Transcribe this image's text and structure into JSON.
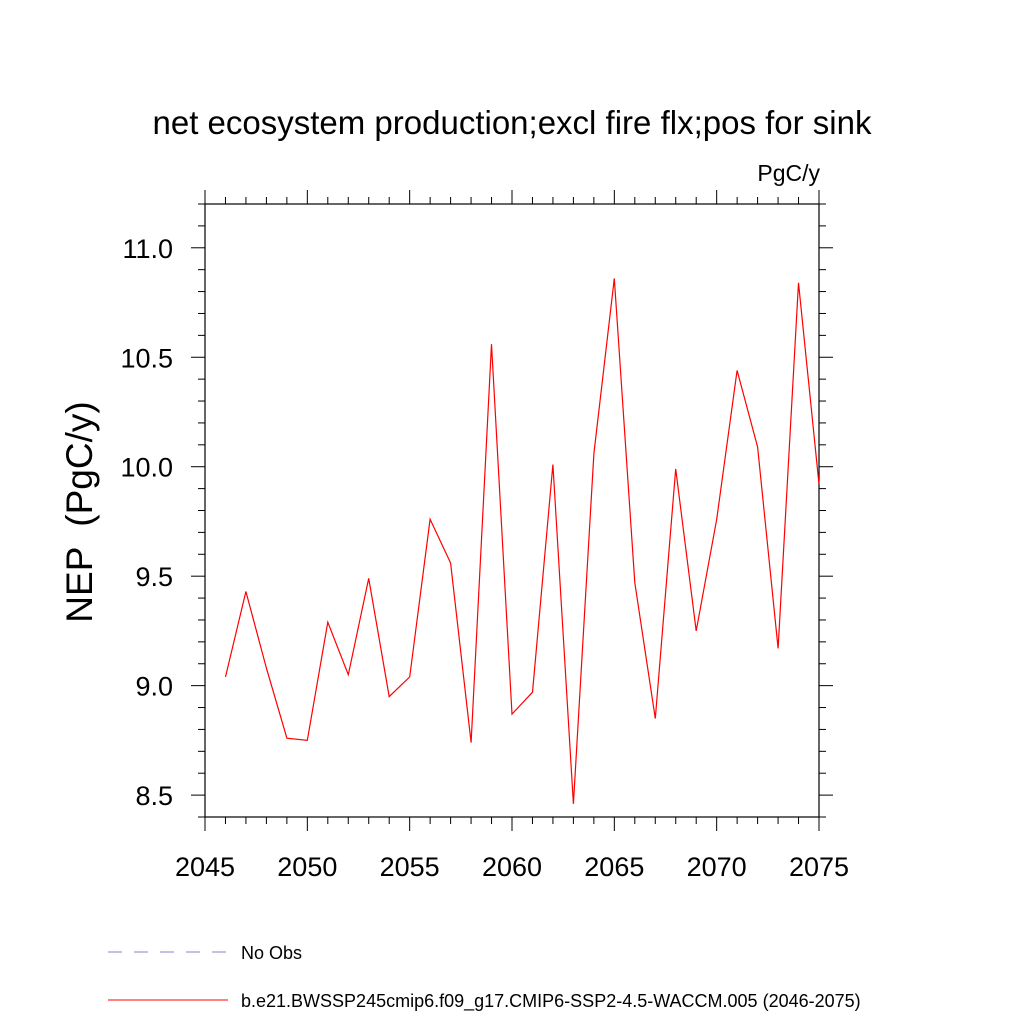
{
  "chart_data": {
    "type": "line",
    "title": "net ecosystem production;excl fire flx;pos for sink",
    "units": "PgC/y",
    "ylabel": "NEP  (PgC/y)",
    "xlabel": "",
    "xlim": [
      2045,
      2075
    ],
    "ylim": [
      8.4,
      11.2
    ],
    "xticks": [
      2045,
      2050,
      2055,
      2060,
      2065,
      2070,
      2075
    ],
    "xtick_labels": [
      "2045",
      "2050",
      "2055",
      "2060",
      "2065",
      "2070",
      "2075"
    ],
    "yticks": [
      8.5,
      9.0,
      9.5,
      10.0,
      10.5,
      11.0
    ],
    "ytick_labels": [
      "8.5",
      "9.0",
      "9.5",
      "10.0",
      "10.5",
      "11.0"
    ],
    "grid": false,
    "legend_position": "bottom",
    "legend": [
      {
        "label": "No Obs",
        "color": "#8a80c8",
        "style": "dashed"
      },
      {
        "label": "b.e21.BWSSP245cmip6.f09_g17.CMIP6-SSP2-4.5-WACCM.005 (2046-2075)",
        "color": "#ff0000",
        "style": "solid"
      }
    ],
    "series": [
      {
        "name": "b.e21.BWSSP245cmip6.f09_g17.CMIP6-SSP2-4.5-WACCM.005 (2046-2075)",
        "color": "#ff0000",
        "x": [
          2046,
          2047,
          2048,
          2049,
          2050,
          2051,
          2052,
          2053,
          2054,
          2055,
          2056,
          2057,
          2058,
          2059,
          2060,
          2061,
          2062,
          2063,
          2064,
          2065,
          2066,
          2067,
          2068,
          2069,
          2070,
          2071,
          2072,
          2073,
          2074,
          2075
        ],
        "y": [
          9.04,
          9.43,
          9.08,
          8.76,
          8.75,
          9.29,
          9.05,
          9.49,
          8.95,
          9.04,
          9.76,
          9.56,
          8.74,
          10.56,
          8.87,
          8.97,
          10.01,
          8.46,
          10.06,
          10.86,
          9.47,
          8.85,
          9.99,
          9.25,
          9.76,
          10.44,
          10.09,
          9.17,
          10.84,
          9.92
        ]
      }
    ]
  }
}
